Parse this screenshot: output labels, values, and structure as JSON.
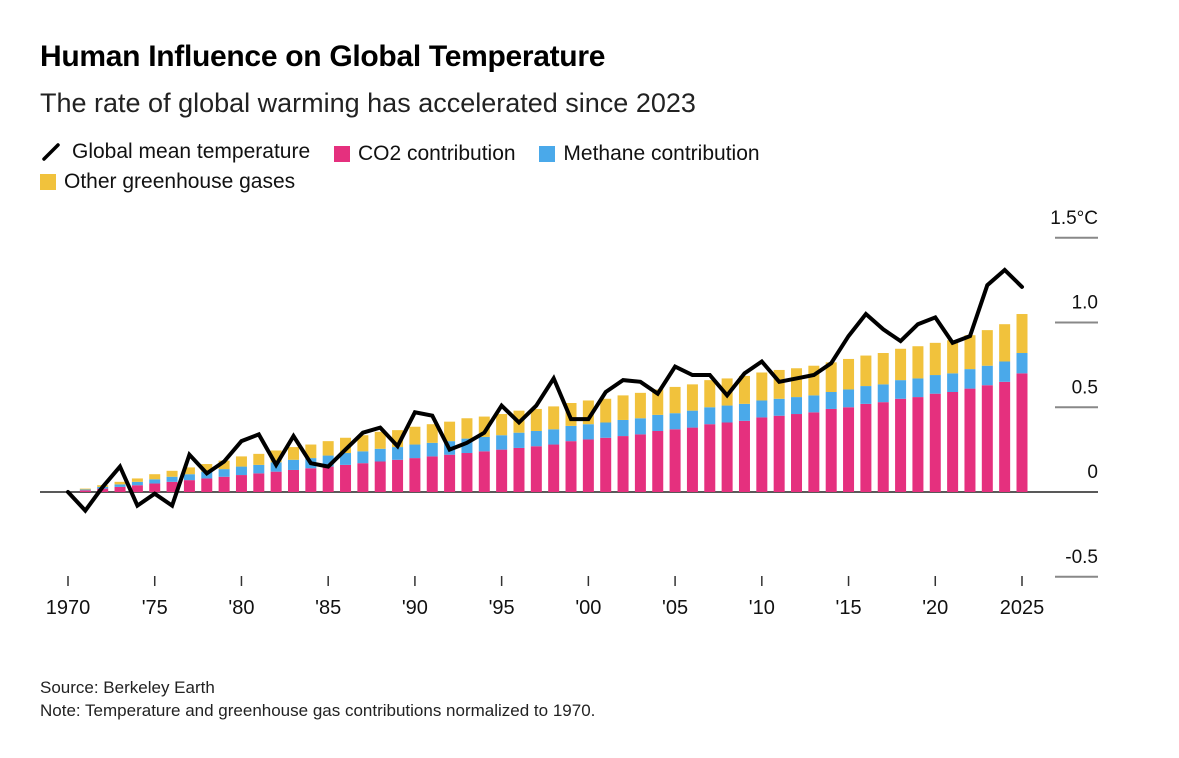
{
  "colors": {
    "co2": "#e5307e",
    "methane": "#4aa9ea",
    "other": "#f1c23c",
    "line": "#000000",
    "grid": "#888888"
  },
  "chart_data": {
    "type": "bar",
    "subtype": "stacked bar with line overlay",
    "title": "Human Influence on Global Temperature",
    "subtitle": "The rate of global warming has accelerated since 2023",
    "xlabel": "",
    "ylabel": "",
    "ylim": [
      -0.5,
      1.5
    ],
    "xlim": [
      1970,
      2025
    ],
    "grid": true,
    "y_axis_position": "right",
    "y_ticks": [
      {
        "value": 1.5,
        "label": "1.5°C"
      },
      {
        "value": 1.0,
        "label": "1.0"
      },
      {
        "value": 0.5,
        "label": "0.5"
      },
      {
        "value": 0,
        "label": "0"
      },
      {
        "value": -0.5,
        "label": "-0.5"
      }
    ],
    "x_ticks": [
      {
        "value": 1970,
        "label": "1970"
      },
      {
        "value": 1975,
        "label": "'75"
      },
      {
        "value": 1980,
        "label": "'80"
      },
      {
        "value": 1985,
        "label": "'85"
      },
      {
        "value": 1990,
        "label": "'90"
      },
      {
        "value": 1995,
        "label": "'95"
      },
      {
        "value": 2000,
        "label": "'00"
      },
      {
        "value": 2005,
        "label": "'05"
      },
      {
        "value": 2010,
        "label": "'10"
      },
      {
        "value": 2015,
        "label": "'15"
      },
      {
        "value": 2020,
        "label": "'20"
      },
      {
        "value": 2025,
        "label": "2025"
      }
    ],
    "legend_position": "top-left",
    "legend": [
      {
        "key": "temperature",
        "label": "Global mean temperature",
        "type": "line"
      },
      {
        "key": "co2",
        "label": "CO2 contribution",
        "type": "bar"
      },
      {
        "key": "methane",
        "label": "Methane contribution",
        "type": "bar"
      },
      {
        "key": "other",
        "label": "Other greenhouse gases",
        "type": "bar"
      }
    ],
    "x": [
      1970,
      1971,
      1972,
      1973,
      1974,
      1975,
      1976,
      1977,
      1978,
      1979,
      1980,
      1981,
      1982,
      1983,
      1984,
      1985,
      1986,
      1987,
      1988,
      1989,
      1990,
      1991,
      1992,
      1993,
      1994,
      1995,
      1996,
      1997,
      1998,
      1999,
      2000,
      2001,
      2002,
      2003,
      2004,
      2005,
      2006,
      2007,
      2008,
      2009,
      2010,
      2011,
      2012,
      2013,
      2014,
      2015,
      2016,
      2017,
      2018,
      2019,
      2020,
      2021,
      2022,
      2023,
      2024,
      2025
    ],
    "series": [
      {
        "name": "CO2 contribution",
        "key": "co2",
        "type": "bar",
        "values": [
          0,
          0.01,
          0.02,
          0.03,
          0.04,
          0.05,
          0.06,
          0.07,
          0.08,
          0.09,
          0.1,
          0.11,
          0.12,
          0.13,
          0.14,
          0.15,
          0.16,
          0.17,
          0.18,
          0.19,
          0.2,
          0.21,
          0.22,
          0.23,
          0.24,
          0.25,
          0.26,
          0.27,
          0.28,
          0.3,
          0.31,
          0.32,
          0.33,
          0.34,
          0.36,
          0.37,
          0.38,
          0.4,
          0.41,
          0.42,
          0.44,
          0.45,
          0.46,
          0.47,
          0.49,
          0.5,
          0.52,
          0.53,
          0.55,
          0.56,
          0.58,
          0.59,
          0.61,
          0.63,
          0.65,
          0.7
        ]
      },
      {
        "name": "Methane contribution",
        "key": "methane",
        "type": "bar",
        "values": [
          0,
          0.005,
          0.01,
          0.015,
          0.02,
          0.025,
          0.03,
          0.035,
          0.04,
          0.045,
          0.05,
          0.05,
          0.055,
          0.06,
          0.06,
          0.065,
          0.07,
          0.07,
          0.075,
          0.075,
          0.08,
          0.08,
          0.08,
          0.085,
          0.085,
          0.085,
          0.09,
          0.09,
          0.09,
          0.09,
          0.09,
          0.09,
          0.095,
          0.095,
          0.095,
          0.095,
          0.1,
          0.1,
          0.1,
          0.1,
          0.1,
          0.1,
          0.1,
          0.1,
          0.1,
          0.105,
          0.105,
          0.105,
          0.11,
          0.11,
          0.11,
          0.11,
          0.115,
          0.115,
          0.12,
          0.12
        ]
      },
      {
        "name": "Other greenhouse gases",
        "key": "other",
        "type": "bar",
        "values": [
          0,
          0.005,
          0.01,
          0.015,
          0.02,
          0.03,
          0.035,
          0.04,
          0.045,
          0.05,
          0.06,
          0.065,
          0.07,
          0.075,
          0.08,
          0.085,
          0.09,
          0.095,
          0.1,
          0.1,
          0.105,
          0.11,
          0.115,
          0.12,
          0.12,
          0.125,
          0.13,
          0.13,
          0.135,
          0.135,
          0.14,
          0.14,
          0.145,
          0.15,
          0.15,
          0.155,
          0.155,
          0.16,
          0.16,
          0.165,
          0.165,
          0.17,
          0.17,
          0.175,
          0.175,
          0.18,
          0.18,
          0.185,
          0.185,
          0.19,
          0.19,
          0.195,
          0.2,
          0.21,
          0.22,
          0.23
        ]
      },
      {
        "name": "Global mean temperature",
        "key": "temperature",
        "type": "line",
        "values": [
          0,
          -0.11,
          0.03,
          0.15,
          -0.08,
          -0.01,
          -0.08,
          0.22,
          0.11,
          0.18,
          0.3,
          0.34,
          0.16,
          0.33,
          0.17,
          0.15,
          0.25,
          0.35,
          0.38,
          0.27,
          0.47,
          0.45,
          0.25,
          0.29,
          0.35,
          0.51,
          0.41,
          0.51,
          0.67,
          0.43,
          0.43,
          0.59,
          0.66,
          0.65,
          0.58,
          0.74,
          0.69,
          0.69,
          0.57,
          0.7,
          0.77,
          0.65,
          0.67,
          0.69,
          0.76,
          0.92,
          1.05,
          0.96,
          0.89,
          0.99,
          1.03,
          0.88,
          0.92,
          1.22,
          1.31,
          1.21
        ]
      }
    ]
  },
  "footer": {
    "source": "Source: Berkeley Earth",
    "note": "Note: Temperature and greenhouse gas contributions normalized to 1970."
  }
}
